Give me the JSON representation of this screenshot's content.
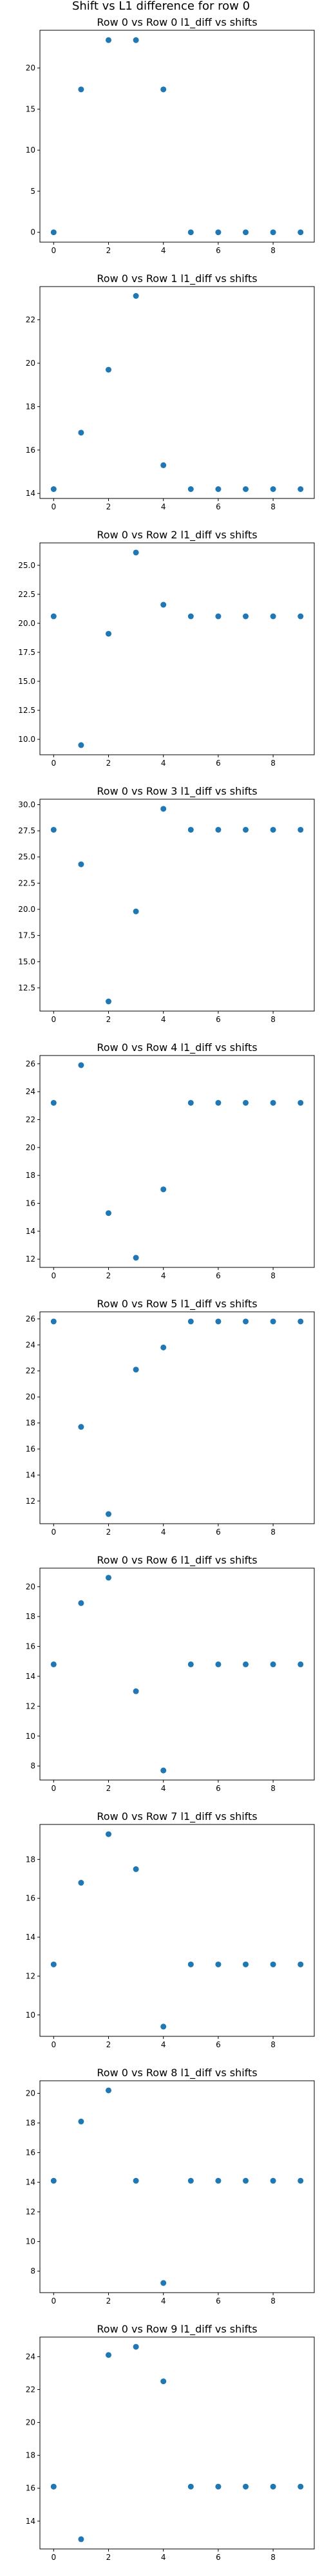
{
  "figure": {
    "suptitle": "Shift vs L1 difference for row 0"
  },
  "colors": {
    "marker": "#1f77b4",
    "axes": "#000000",
    "background": "#ffffff"
  },
  "chart_data": [
    {
      "type": "scatter",
      "title": "Row 0 vs Row 0 l1_diff vs shifts",
      "x": [
        0,
        1,
        2,
        3,
        4,
        5,
        6,
        7,
        8,
        9
      ],
      "y": [
        0.0,
        17.4,
        23.4,
        23.4,
        17.4,
        0.0,
        0.0,
        0.0,
        0.0,
        0.0
      ],
      "xlim": [
        -0.5,
        9.5
      ],
      "ylim": [
        -1.2,
        24.6
      ],
      "xticks": [
        0,
        2,
        4,
        6,
        8
      ],
      "yticks": [
        0,
        5,
        10,
        15,
        20
      ],
      "grid": false
    },
    {
      "type": "scatter",
      "title": "Row 0 vs Row 1 l1_diff vs shifts",
      "x": [
        0,
        1,
        2,
        3,
        4,
        5,
        6,
        7,
        8,
        9
      ],
      "y": [
        14.2,
        16.8,
        19.7,
        23.1,
        15.3,
        14.2,
        14.2,
        14.2,
        14.2,
        14.2
      ],
      "xlim": [
        -0.5,
        9.5
      ],
      "ylim": [
        13.77,
        23.53
      ],
      "xticks": [
        0,
        2,
        4,
        6,
        8
      ],
      "yticks": [
        14,
        16,
        18,
        20,
        22
      ],
      "grid": false
    },
    {
      "type": "scatter",
      "title": "Row 0 vs Row 2 l1_diff vs shifts",
      "x": [
        0,
        1,
        2,
        3,
        4,
        5,
        6,
        7,
        8,
        9
      ],
      "y": [
        20.6,
        9.5,
        19.1,
        26.1,
        21.6,
        20.6,
        20.6,
        20.6,
        20.6,
        20.6
      ],
      "xlim": [
        -0.5,
        9.5
      ],
      "ylim": [
        8.67,
        26.93
      ],
      "xticks": [
        0,
        2,
        4,
        6,
        8
      ],
      "yticks": [
        10.0,
        12.5,
        15.0,
        17.5,
        20.0,
        22.5,
        25.0
      ],
      "ytick_labels": [
        "10.0",
        "12.5",
        "15.0",
        "17.5",
        "20.0",
        "22.5",
        "25.0"
      ],
      "grid": false
    },
    {
      "type": "scatter",
      "title": "Row 0 vs Row 3 l1_diff vs shifts",
      "x": [
        0,
        1,
        2,
        3,
        4,
        5,
        6,
        7,
        8,
        9
      ],
      "y": [
        27.6,
        24.3,
        11.2,
        19.8,
        29.6,
        27.6,
        27.6,
        27.6,
        27.6,
        27.6
      ],
      "xlim": [
        -0.5,
        9.5
      ],
      "ylim": [
        10.28,
        30.52
      ],
      "xticks": [
        0,
        2,
        4,
        6,
        8
      ],
      "yticks": [
        12.5,
        15.0,
        17.5,
        20.0,
        22.5,
        25.0,
        27.5,
        30.0
      ],
      "ytick_labels": [
        "12.5",
        "15.0",
        "17.5",
        "20.0",
        "22.5",
        "25.0",
        "27.5",
        "30.0"
      ],
      "grid": false
    },
    {
      "type": "scatter",
      "title": "Row 0 vs Row 4 l1_diff vs shifts",
      "x": [
        0,
        1,
        2,
        3,
        4,
        5,
        6,
        7,
        8,
        9
      ],
      "y": [
        23.2,
        25.9,
        15.3,
        12.1,
        17.0,
        23.2,
        23.2,
        23.2,
        23.2,
        23.2
      ],
      "xlim": [
        -0.5,
        9.5
      ],
      "ylim": [
        11.41,
        26.59
      ],
      "xticks": [
        0,
        2,
        4,
        6,
        8
      ],
      "yticks": [
        12,
        14,
        16,
        18,
        20,
        22,
        24,
        26
      ],
      "grid": false
    },
    {
      "type": "scatter",
      "title": "Row 0 vs Row 5 l1_diff vs shifts",
      "x": [
        0,
        1,
        2,
        3,
        4,
        5,
        6,
        7,
        8,
        9
      ],
      "y": [
        25.8,
        17.7,
        11.0,
        22.1,
        23.8,
        25.8,
        25.8,
        25.8,
        25.8,
        25.8
      ],
      "xlim": [
        -0.5,
        9.5
      ],
      "ylim": [
        10.26,
        26.54
      ],
      "xticks": [
        0,
        2,
        4,
        6,
        8
      ],
      "yticks": [
        12,
        14,
        16,
        18,
        20,
        22,
        24,
        26
      ],
      "grid": false
    },
    {
      "type": "scatter",
      "title": "Row 0 vs Row 6 l1_diff vs shifts",
      "x": [
        0,
        1,
        2,
        3,
        4,
        5,
        6,
        7,
        8,
        9
      ],
      "y": [
        14.8,
        18.9,
        20.6,
        13.0,
        7.7,
        14.8,
        14.8,
        14.8,
        14.8,
        14.8
      ],
      "xlim": [
        -0.5,
        9.5
      ],
      "ylim": [
        7.06,
        21.24
      ],
      "xticks": [
        0,
        2,
        4,
        6,
        8
      ],
      "yticks": [
        8,
        10,
        12,
        14,
        16,
        18,
        20
      ],
      "grid": false
    },
    {
      "type": "scatter",
      "title": "Row 0 vs Row 7 l1_diff vs shifts",
      "x": [
        0,
        1,
        2,
        3,
        4,
        5,
        6,
        7,
        8,
        9
      ],
      "y": [
        12.6,
        16.8,
        19.3,
        17.5,
        9.4,
        12.6,
        12.6,
        12.6,
        12.6,
        12.6
      ],
      "xlim": [
        -0.5,
        9.5
      ],
      "ylim": [
        8.9,
        19.8
      ],
      "xticks": [
        0,
        2,
        4,
        6,
        8
      ],
      "yticks": [
        10,
        12,
        14,
        16,
        18
      ],
      "grid": false
    },
    {
      "type": "scatter",
      "title": "Row 0 vs Row 8 l1_diff vs shifts",
      "x": [
        0,
        1,
        2,
        3,
        4,
        5,
        6,
        7,
        8,
        9
      ],
      "y": [
        14.1,
        18.1,
        20.2,
        14.1,
        7.2,
        14.1,
        14.1,
        14.1,
        14.1,
        14.1
      ],
      "xlim": [
        -0.5,
        9.5
      ],
      "ylim": [
        6.55,
        20.85
      ],
      "xticks": [
        0,
        2,
        4,
        6,
        8
      ],
      "yticks": [
        8,
        10,
        12,
        14,
        16,
        18,
        20
      ],
      "grid": false
    },
    {
      "type": "scatter",
      "title": "Row 0 vs Row 9 l1_diff vs shifts",
      "x": [
        0,
        1,
        2,
        3,
        4,
        5,
        6,
        7,
        8,
        9
      ],
      "y": [
        16.1,
        12.9,
        24.1,
        24.6,
        22.5,
        16.1,
        16.1,
        16.1,
        16.1,
        16.1
      ],
      "xlim": [
        -0.5,
        9.5
      ],
      "ylim": [
        12.31,
        25.19
      ],
      "xticks": [
        0,
        2,
        4,
        6,
        8
      ],
      "yticks": [
        14,
        16,
        18,
        20,
        22,
        24
      ],
      "grid": false
    }
  ]
}
